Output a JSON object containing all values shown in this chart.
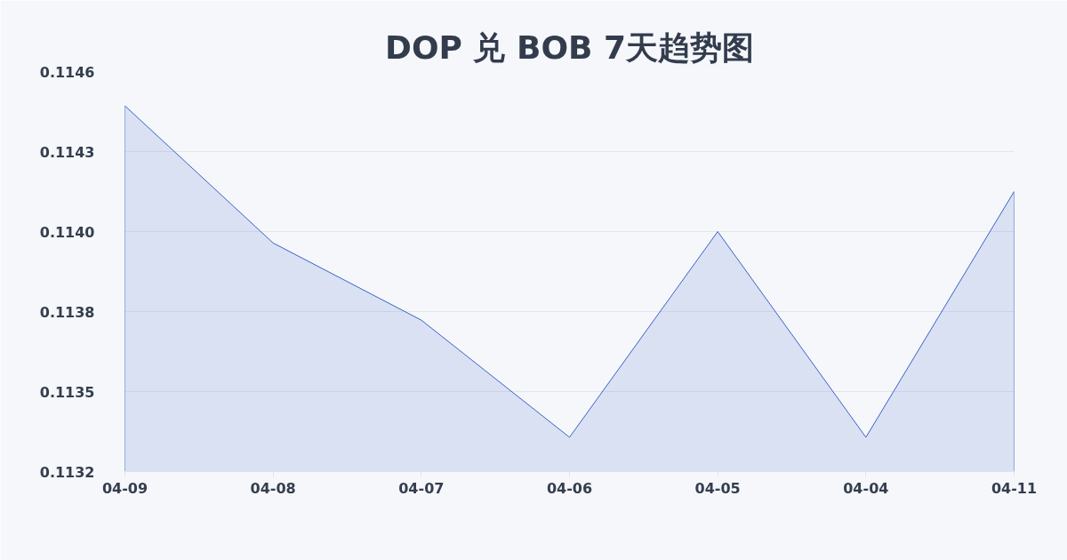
{
  "chart_data": {
    "type": "area",
    "title": "DOP 兑 BOB 7天趋势图",
    "categories": [
      "04-09",
      "04-08",
      "04-07",
      "04-06",
      "04-05",
      "04-04",
      "04-11"
    ],
    "series": [
      {
        "color": "#3a62c8",
        "values": [
          0.11448,
          0.114,
          0.11373,
          0.11332,
          0.11404,
          0.11332,
          0.11418
        ]
      }
    ],
    "ylim": [
      0.1132,
      0.1146
    ],
    "yticks": [
      0.1132,
      {
        "value": 0.11348,
        "label": "0.1135"
      },
      {
        "value": 0.11376,
        "label": "0.1138"
      },
      {
        "value": 0.11404,
        "label": "0.1140"
      },
      {
        "value": 0.11432,
        "label": "0.1143"
      },
      0.1146
    ],
    "grid": "y"
  }
}
